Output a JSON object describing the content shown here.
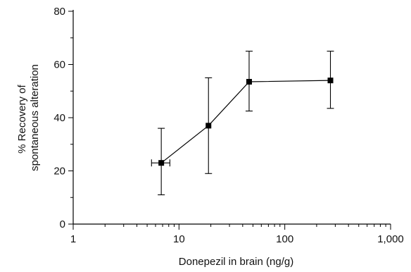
{
  "chart_data": {
    "type": "scatter",
    "xlabel": "Donepezil in brain (ng/g)",
    "ylabel_lines": [
      "% Recovery of",
      "spontaneous alteration"
    ],
    "x_scale": "log",
    "xlim": [
      1,
      1000
    ],
    "ylim": [
      0,
      80
    ],
    "x_ticks": [
      1,
      10,
      100,
      1000
    ],
    "x_tick_labels": [
      "1",
      "10",
      "100",
      "1,000"
    ],
    "y_ticks": [
      0,
      20,
      40,
      60,
      80
    ],
    "y_tick_labels": [
      "0",
      "20",
      "40",
      "60",
      "80"
    ],
    "grid": false,
    "series": [
      {
        "points": [
          {
            "x": 6.8,
            "y": 23,
            "y_low": 11,
            "y_high": 36,
            "x_low": 5.5,
            "x_high": 8.2
          },
          {
            "x": 19,
            "y": 37,
            "y_low": 19,
            "y_high": 55
          },
          {
            "x": 46,
            "y": 53.5,
            "y_low": 42.5,
            "y_high": 65
          },
          {
            "x": 270,
            "y": 54,
            "y_low": 43.5,
            "y_high": 65
          }
        ]
      }
    ]
  }
}
